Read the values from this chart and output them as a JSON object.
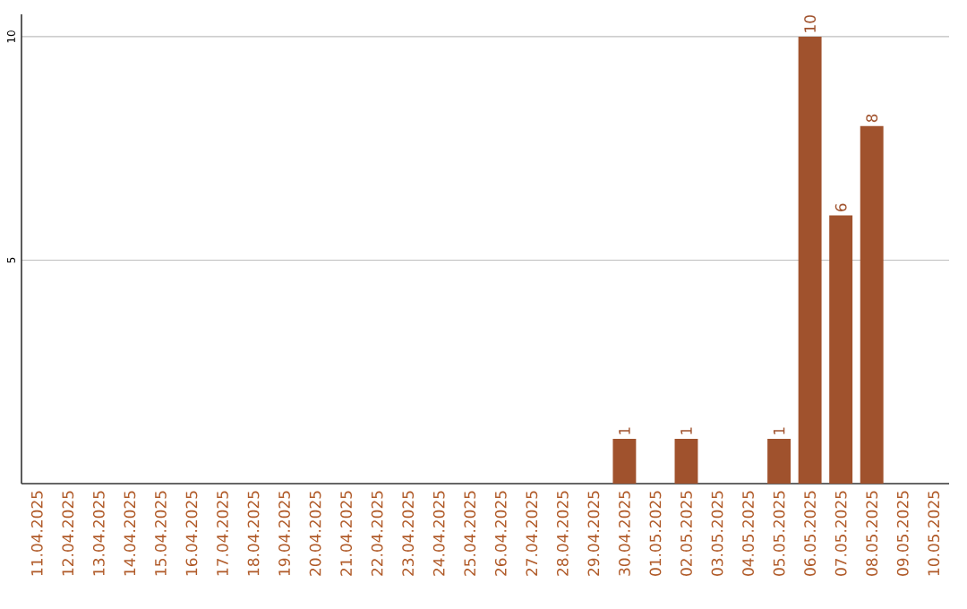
{
  "chart_data": {
    "type": "bar",
    "categories": [
      "11.04.2025",
      "12.04.2025",
      "13.04.2025",
      "14.04.2025",
      "15.04.2025",
      "16.04.2025",
      "17.04.2025",
      "18.04.2025",
      "19.04.2025",
      "20.04.2025",
      "21.04.2025",
      "22.04.2025",
      "23.04.2025",
      "24.04.2025",
      "25.04.2025",
      "26.04.2025",
      "27.04.2025",
      "28.04.2025",
      "29.04.2025",
      "30.04.2025",
      "01.05.2025",
      "02.05.2025",
      "03.05.2025",
      "04.05.2025",
      "05.05.2025",
      "06.05.2025",
      "07.05.2025",
      "08.05.2025",
      "09.05.2025",
      "10.05.2025"
    ],
    "values": [
      0,
      0,
      0,
      0,
      0,
      0,
      0,
      0,
      0,
      0,
      0,
      0,
      0,
      0,
      0,
      0,
      0,
      0,
      0,
      1,
      0,
      1,
      0,
      0,
      1,
      10,
      6,
      8,
      0,
      0
    ],
    "value_labels": [
      null,
      null,
      null,
      null,
      null,
      null,
      null,
      null,
      null,
      null,
      null,
      null,
      null,
      null,
      null,
      null,
      null,
      null,
      null,
      "1",
      null,
      "1",
      null,
      null,
      "1",
      "10",
      "6",
      "8",
      null,
      null
    ],
    "color": "#a0522d",
    "ylim": [
      0,
      10.5
    ],
    "yticks": [
      5,
      10
    ],
    "grid": "y"
  }
}
